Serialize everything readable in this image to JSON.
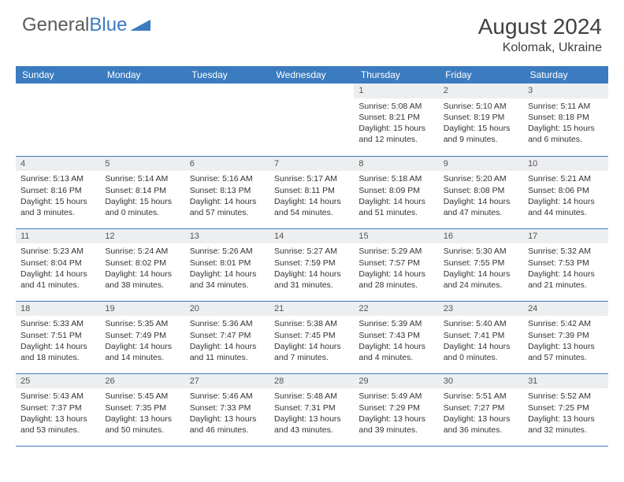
{
  "logo": {
    "part1": "General",
    "part2": "Blue"
  },
  "title": "August 2024",
  "location": "Kolomak, Ukraine",
  "colors": {
    "header_bg": "#3b7bbf",
    "header_text": "#ffffff",
    "daynum_bg": "#eceef0",
    "text": "#333333",
    "border": "#3b7bbf"
  },
  "day_headers": [
    "Sunday",
    "Monday",
    "Tuesday",
    "Wednesday",
    "Thursday",
    "Friday",
    "Saturday"
  ],
  "weeks": [
    [
      null,
      null,
      null,
      null,
      {
        "n": "1",
        "sr": "Sunrise: 5:08 AM",
        "ss": "Sunset: 8:21 PM",
        "d1": "Daylight: 15 hours",
        "d2": "and 12 minutes."
      },
      {
        "n": "2",
        "sr": "Sunrise: 5:10 AM",
        "ss": "Sunset: 8:19 PM",
        "d1": "Daylight: 15 hours",
        "d2": "and 9 minutes."
      },
      {
        "n": "3",
        "sr": "Sunrise: 5:11 AM",
        "ss": "Sunset: 8:18 PM",
        "d1": "Daylight: 15 hours",
        "d2": "and 6 minutes."
      }
    ],
    [
      {
        "n": "4",
        "sr": "Sunrise: 5:13 AM",
        "ss": "Sunset: 8:16 PM",
        "d1": "Daylight: 15 hours",
        "d2": "and 3 minutes."
      },
      {
        "n": "5",
        "sr": "Sunrise: 5:14 AM",
        "ss": "Sunset: 8:14 PM",
        "d1": "Daylight: 15 hours",
        "d2": "and 0 minutes."
      },
      {
        "n": "6",
        "sr": "Sunrise: 5:16 AM",
        "ss": "Sunset: 8:13 PM",
        "d1": "Daylight: 14 hours",
        "d2": "and 57 minutes."
      },
      {
        "n": "7",
        "sr": "Sunrise: 5:17 AM",
        "ss": "Sunset: 8:11 PM",
        "d1": "Daylight: 14 hours",
        "d2": "and 54 minutes."
      },
      {
        "n": "8",
        "sr": "Sunrise: 5:18 AM",
        "ss": "Sunset: 8:09 PM",
        "d1": "Daylight: 14 hours",
        "d2": "and 51 minutes."
      },
      {
        "n": "9",
        "sr": "Sunrise: 5:20 AM",
        "ss": "Sunset: 8:08 PM",
        "d1": "Daylight: 14 hours",
        "d2": "and 47 minutes."
      },
      {
        "n": "10",
        "sr": "Sunrise: 5:21 AM",
        "ss": "Sunset: 8:06 PM",
        "d1": "Daylight: 14 hours",
        "d2": "and 44 minutes."
      }
    ],
    [
      {
        "n": "11",
        "sr": "Sunrise: 5:23 AM",
        "ss": "Sunset: 8:04 PM",
        "d1": "Daylight: 14 hours",
        "d2": "and 41 minutes."
      },
      {
        "n": "12",
        "sr": "Sunrise: 5:24 AM",
        "ss": "Sunset: 8:02 PM",
        "d1": "Daylight: 14 hours",
        "d2": "and 38 minutes."
      },
      {
        "n": "13",
        "sr": "Sunrise: 5:26 AM",
        "ss": "Sunset: 8:01 PM",
        "d1": "Daylight: 14 hours",
        "d2": "and 34 minutes."
      },
      {
        "n": "14",
        "sr": "Sunrise: 5:27 AM",
        "ss": "Sunset: 7:59 PM",
        "d1": "Daylight: 14 hours",
        "d2": "and 31 minutes."
      },
      {
        "n": "15",
        "sr": "Sunrise: 5:29 AM",
        "ss": "Sunset: 7:57 PM",
        "d1": "Daylight: 14 hours",
        "d2": "and 28 minutes."
      },
      {
        "n": "16",
        "sr": "Sunrise: 5:30 AM",
        "ss": "Sunset: 7:55 PM",
        "d1": "Daylight: 14 hours",
        "d2": "and 24 minutes."
      },
      {
        "n": "17",
        "sr": "Sunrise: 5:32 AM",
        "ss": "Sunset: 7:53 PM",
        "d1": "Daylight: 14 hours",
        "d2": "and 21 minutes."
      }
    ],
    [
      {
        "n": "18",
        "sr": "Sunrise: 5:33 AM",
        "ss": "Sunset: 7:51 PM",
        "d1": "Daylight: 14 hours",
        "d2": "and 18 minutes."
      },
      {
        "n": "19",
        "sr": "Sunrise: 5:35 AM",
        "ss": "Sunset: 7:49 PM",
        "d1": "Daylight: 14 hours",
        "d2": "and 14 minutes."
      },
      {
        "n": "20",
        "sr": "Sunrise: 5:36 AM",
        "ss": "Sunset: 7:47 PM",
        "d1": "Daylight: 14 hours",
        "d2": "and 11 minutes."
      },
      {
        "n": "21",
        "sr": "Sunrise: 5:38 AM",
        "ss": "Sunset: 7:45 PM",
        "d1": "Daylight: 14 hours",
        "d2": "and 7 minutes."
      },
      {
        "n": "22",
        "sr": "Sunrise: 5:39 AM",
        "ss": "Sunset: 7:43 PM",
        "d1": "Daylight: 14 hours",
        "d2": "and 4 minutes."
      },
      {
        "n": "23",
        "sr": "Sunrise: 5:40 AM",
        "ss": "Sunset: 7:41 PM",
        "d1": "Daylight: 14 hours",
        "d2": "and 0 minutes."
      },
      {
        "n": "24",
        "sr": "Sunrise: 5:42 AM",
        "ss": "Sunset: 7:39 PM",
        "d1": "Daylight: 13 hours",
        "d2": "and 57 minutes."
      }
    ],
    [
      {
        "n": "25",
        "sr": "Sunrise: 5:43 AM",
        "ss": "Sunset: 7:37 PM",
        "d1": "Daylight: 13 hours",
        "d2": "and 53 minutes."
      },
      {
        "n": "26",
        "sr": "Sunrise: 5:45 AM",
        "ss": "Sunset: 7:35 PM",
        "d1": "Daylight: 13 hours",
        "d2": "and 50 minutes."
      },
      {
        "n": "27",
        "sr": "Sunrise: 5:46 AM",
        "ss": "Sunset: 7:33 PM",
        "d1": "Daylight: 13 hours",
        "d2": "and 46 minutes."
      },
      {
        "n": "28",
        "sr": "Sunrise: 5:48 AM",
        "ss": "Sunset: 7:31 PM",
        "d1": "Daylight: 13 hours",
        "d2": "and 43 minutes."
      },
      {
        "n": "29",
        "sr": "Sunrise: 5:49 AM",
        "ss": "Sunset: 7:29 PM",
        "d1": "Daylight: 13 hours",
        "d2": "and 39 minutes."
      },
      {
        "n": "30",
        "sr": "Sunrise: 5:51 AM",
        "ss": "Sunset: 7:27 PM",
        "d1": "Daylight: 13 hours",
        "d2": "and 36 minutes."
      },
      {
        "n": "31",
        "sr": "Sunrise: 5:52 AM",
        "ss": "Sunset: 7:25 PM",
        "d1": "Daylight: 13 hours",
        "d2": "and 32 minutes."
      }
    ]
  ]
}
